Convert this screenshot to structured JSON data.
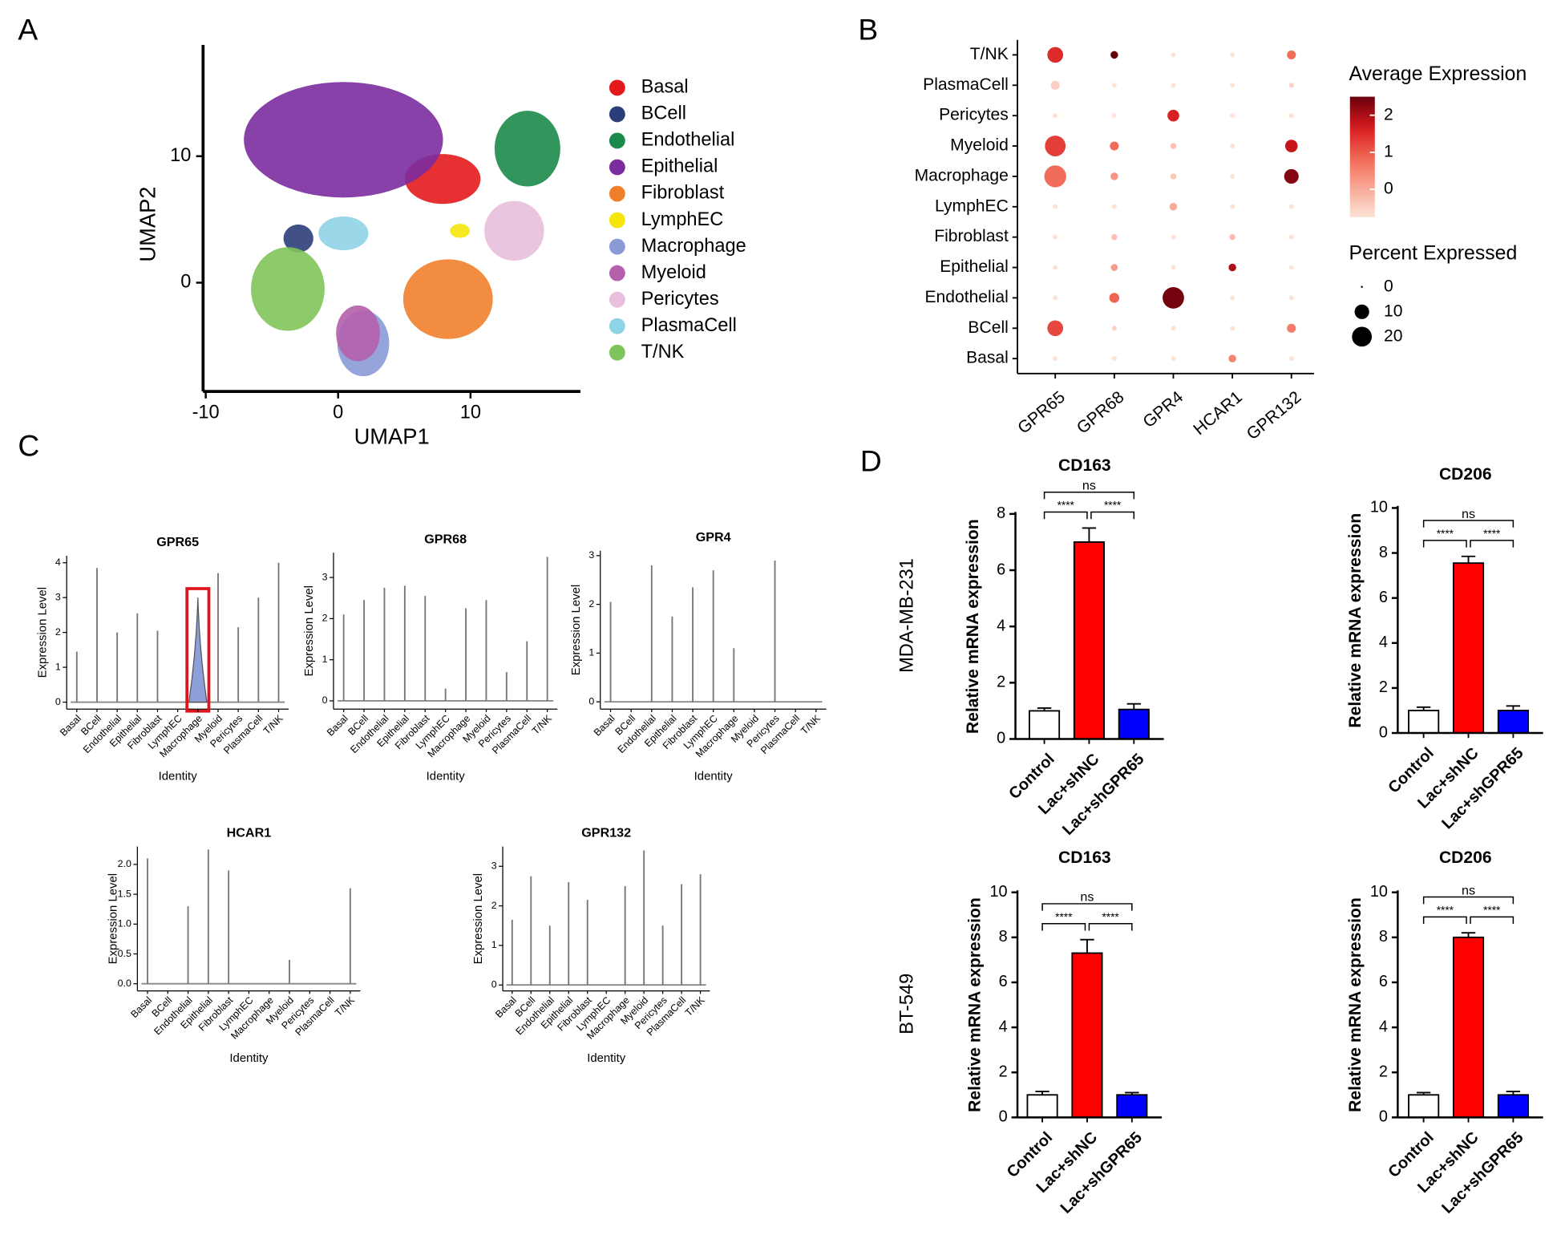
{
  "panel_labels": [
    "A",
    "B",
    "C",
    "D"
  ],
  "row_labels": [
    "MDA-MB-231",
    "BT-549"
  ],
  "chart_data": [
    {
      "type": "umap",
      "xlabel": "UMAP1",
      "ylabel": "UMAP2",
      "xlim": [
        -10.2,
        18.3
      ],
      "ylim": [
        -8.6,
        18.8
      ],
      "xticks": [
        -10,
        0,
        10
      ],
      "yticks": [
        0,
        10
      ],
      "series": [
        {
          "name": "Basal",
          "color": "#e31a1c",
          "x": [
            7.9
          ],
          "values": [
            8.2
          ]
        },
        {
          "name": "BCell",
          "color": "#2c3e7a",
          "x": [
            -3
          ],
          "values": [
            3.5
          ]
        },
        {
          "name": "Endothelial",
          "color": "#1b8a4a",
          "x": [
            14.3
          ],
          "values": [
            10.6
          ]
        },
        {
          "name": "Epithelial",
          "color": "#7b2c9e",
          "x": [
            0.4
          ],
          "values": [
            11.3
          ]
        },
        {
          "name": "Fibroblast",
          "color": "#f07f2c",
          "x": [
            8.3
          ],
          "values": [
            -1.3
          ]
        },
        {
          "name": "LymphEC",
          "color": "#f5e50a",
          "x": [
            9.2
          ],
          "values": [
            4.1
          ]
        },
        {
          "name": "Macrophage",
          "color": "#8a9ad6",
          "x": [
            1.9
          ],
          "values": [
            -4.8
          ]
        },
        {
          "name": "Myeloid",
          "color": "#b460ac",
          "x": [
            1.5
          ],
          "values": [
            -4.0
          ]
        },
        {
          "name": "Pericytes",
          "color": "#e8bfdc",
          "x": [
            13.3
          ],
          "values": [
            4.1
          ]
        },
        {
          "name": "PlasmaCell",
          "color": "#8fd3e6",
          "x": [
            0.4
          ],
          "values": [
            3.9
          ]
        },
        {
          "name": "T/NK",
          "color": "#7fc45a",
          "x": [
            -3.8
          ],
          "values": [
            -0.5
          ]
        }
      ]
    },
    {
      "type": "dot",
      "rows": [
        "T/NK",
        "PlasmaCell",
        "Pericytes",
        "Myeloid",
        "Macrophage",
        "LymphEC",
        "Fibroblast",
        "Epithelial",
        "Endothelial",
        "BCell",
        "Basal"
      ],
      "series": [
        {
          "name": "GPR65",
          "values": [
            1.5,
            -0.5,
            -0.75,
            1.3,
            0.8,
            -0.75,
            -0.75,
            -0.75,
            -0.75,
            1.2,
            -0.75
          ],
          "sizes": [
            12,
            3,
            0.5,
            22,
            25,
            0.5,
            0.5,
            0.5,
            0.5,
            12,
            0.5
          ]
        },
        {
          "name": "GPR68",
          "values": [
            2.5,
            -0.75,
            -0.75,
            0.8,
            0.3,
            -0.75,
            -0.3,
            0.2,
            0.9,
            -0.5,
            -0.75
          ],
          "sizes": [
            2,
            0.5,
            0.5,
            3,
            2,
            0.5,
            1,
            1.5,
            4,
            0.5,
            0.5
          ]
        },
        {
          "name": "GPR4",
          "values": [
            -0.75,
            -0.75,
            1.6,
            -0.3,
            -0.4,
            0,
            -0.75,
            -0.75,
            2.4,
            -0.75,
            -0.75
          ],
          "sizes": [
            0.5,
            0.5,
            6,
            1,
            1,
            2,
            0.5,
            0.5,
            24,
            0.5,
            0.5
          ]
        },
        {
          "name": "HCAR1",
          "values": [
            -0.75,
            -0.75,
            -0.75,
            -0.75,
            -0.75,
            -0.75,
            -0.2,
            2.0,
            -0.75,
            -0.75,
            0.5
          ],
          "sizes": [
            0.5,
            0.5,
            0.5,
            0.5,
            0.5,
            0.5,
            1,
            2,
            0.5,
            0.5,
            2
          ]
        },
        {
          "name": "GPR132",
          "values": [
            0.8,
            -0.5,
            -0.75,
            1.8,
            2.3,
            -0.75,
            -0.75,
            -0.75,
            -0.75,
            0.6,
            -0.75
          ],
          "sizes": [
            3,
            0.5,
            0.5,
            7,
            10,
            0.5,
            0.5,
            0.5,
            0.5,
            3,
            0.5
          ]
        }
      ],
      "color_title": "Average Expression",
      "colorlim": [
        -0.75,
        2.5
      ],
      "color_ticks": [
        0,
        1,
        2
      ],
      "size_title": "Percent Expressed",
      "size_ticks": [
        0,
        10,
        20
      ]
    },
    {
      "type": "violin",
      "title": "GPR65",
      "ylabel": "Expression Level",
      "xlabel": "Identity",
      "categories": [
        "Basal",
        "BCell",
        "Endothelial",
        "Epithelial",
        "Fibroblast",
        "LymphEC",
        "Macrophage",
        "Myeloid",
        "Pericytes",
        "PlasmaCell",
        "T/NK"
      ],
      "values": [
        1.45,
        3.85,
        2.0,
        2.55,
        2.05,
        0,
        3.0,
        3.7,
        2.15,
        3.0,
        4.0
      ],
      "ylim": [
        -0.2,
        4.2
      ],
      "yticks": [
        0,
        1,
        2,
        3,
        4
      ],
      "highlight": "Macrophage"
    },
    {
      "type": "violin",
      "title": "GPR68",
      "ylabel": "Expression Level",
      "xlabel": "Identity",
      "categories": [
        "Basal",
        "BCell",
        "Endothelial",
        "Epithelial",
        "Fibroblast",
        "LymphEC",
        "Macrophage",
        "Myeloid",
        "Pericytes",
        "PlasmaCell",
        "T/NK"
      ],
      "values": [
        2.1,
        2.45,
        2.75,
        2.8,
        2.55,
        0.3,
        2.25,
        2.45,
        0.7,
        1.45,
        3.5
      ],
      "ylim": [
        -0.2,
        3.6
      ],
      "yticks": [
        0,
        1,
        2,
        3
      ]
    },
    {
      "type": "violin",
      "title": "GPR4",
      "ylabel": "Expression Level",
      "xlabel": "Identity",
      "categories": [
        "Basal",
        "BCell",
        "Endothelial",
        "Epithelial",
        "Fibroblast",
        "LymphEC",
        "Macrophage",
        "Myeloid",
        "Pericytes",
        "PlasmaCell",
        "T/NK"
      ],
      "values": [
        2.05,
        0,
        2.8,
        1.75,
        2.35,
        2.7,
        1.1,
        0,
        2.9,
        0,
        0
      ],
      "ylim": [
        -0.15,
        3.1
      ],
      "yticks": [
        0,
        1,
        2,
        3
      ]
    },
    {
      "type": "violin",
      "title": "HCAR1",
      "ylabel": "Expression Level",
      "xlabel": "Identity",
      "categories": [
        "Basal",
        "BCell",
        "Endothelial",
        "Epithelial",
        "Fibroblast",
        "LymphEC",
        "Macrophage",
        "Myeloid",
        "Pericytes",
        "PlasmaCell",
        "T/NK"
      ],
      "values": [
        2.1,
        0,
        1.3,
        2.25,
        1.9,
        0,
        0,
        0.4,
        0,
        0,
        1.6
      ],
      "ylim": [
        -0.12,
        2.3
      ],
      "yticks": [
        {
          "value": 0,
          "label": "0.0"
        },
        0.5,
        {
          "value": 1,
          "label": "1.0"
        },
        1.5,
        {
          "value": 2,
          "label": "2.0"
        }
      ]
    },
    {
      "type": "violin",
      "title": "GPR132",
      "ylabel": "Expression Level",
      "xlabel": "Identity",
      "categories": [
        "Basal",
        "BCell",
        "Endothelial",
        "Epithelial",
        "Fibroblast",
        "LymphEC",
        "Macrophage",
        "Myeloid",
        "Pericytes",
        "PlasmaCell",
        "T/NK"
      ],
      "values": [
        1.65,
        2.75,
        1.5,
        2.6,
        2.15,
        0,
        2.5,
        3.4,
        1.5,
        2.55,
        2.8
      ],
      "ylim": [
        -0.15,
        3.5
      ],
      "yticks": [
        0,
        1,
        2,
        3
      ]
    },
    {
      "type": "bar",
      "title": "CD163",
      "ylabel": "Relative mRNA expression",
      "categories": [
        "Control",
        "Lac+shNC",
        "Lac+shGPR65"
      ],
      "colors": [
        "#ffffff",
        "#ff0000",
        "#0000ff"
      ],
      "values": [
        1.0,
        7.0,
        1.05
      ],
      "errors": [
        0.1,
        0.5,
        0.2
      ],
      "ylim": [
        0,
        8
      ],
      "yticks": [
        0,
        2,
        4,
        6,
        8
      ],
      "annotations": [
        "****",
        "****",
        "ns"
      ]
    },
    {
      "type": "bar",
      "title": "CD206",
      "ylabel": "Relative mRNA expression",
      "categories": [
        "Control",
        "Lac+shNC",
        "Lac+shGPR65"
      ],
      "colors": [
        "#ffffff",
        "#ff0000",
        "#0000ff"
      ],
      "values": [
        1.0,
        7.55,
        1.0
      ],
      "errors": [
        0.15,
        0.3,
        0.2
      ],
      "ylim": [
        0,
        10
      ],
      "yticks": [
        0,
        2,
        4,
        6,
        8,
        10
      ],
      "annotations": [
        "****",
        "****",
        "ns"
      ]
    },
    {
      "type": "bar",
      "title": "CD163",
      "ylabel": "Relative mRNA expression",
      "categories": [
        "Control",
        "Lac+shNC",
        "Lac+shGPR65"
      ],
      "colors": [
        "#ffffff",
        "#ff0000",
        "#0000ff"
      ],
      "values": [
        1.0,
        7.3,
        1.0
      ],
      "errors": [
        0.15,
        0.6,
        0.1
      ],
      "ylim": [
        0,
        10
      ],
      "yticks": [
        0,
        2,
        4,
        6,
        8,
        10
      ],
      "annotations": [
        "****",
        "****",
        "ns"
      ]
    },
    {
      "type": "bar",
      "title": "CD206",
      "ylabel": "Relative mRNA expression",
      "categories": [
        "Control",
        "Lac+shNC",
        "Lac+shGPR65"
      ],
      "colors": [
        "#ffffff",
        "#ff0000",
        "#0000ff"
      ],
      "values": [
        1.0,
        8.0,
        1.0
      ],
      "errors": [
        0.1,
        0.2,
        0.15
      ],
      "ylim": [
        0,
        10
      ],
      "yticks": [
        0,
        2,
        4,
        6,
        8,
        10
      ],
      "annotations": [
        "****",
        "****",
        "ns"
      ]
    }
  ]
}
